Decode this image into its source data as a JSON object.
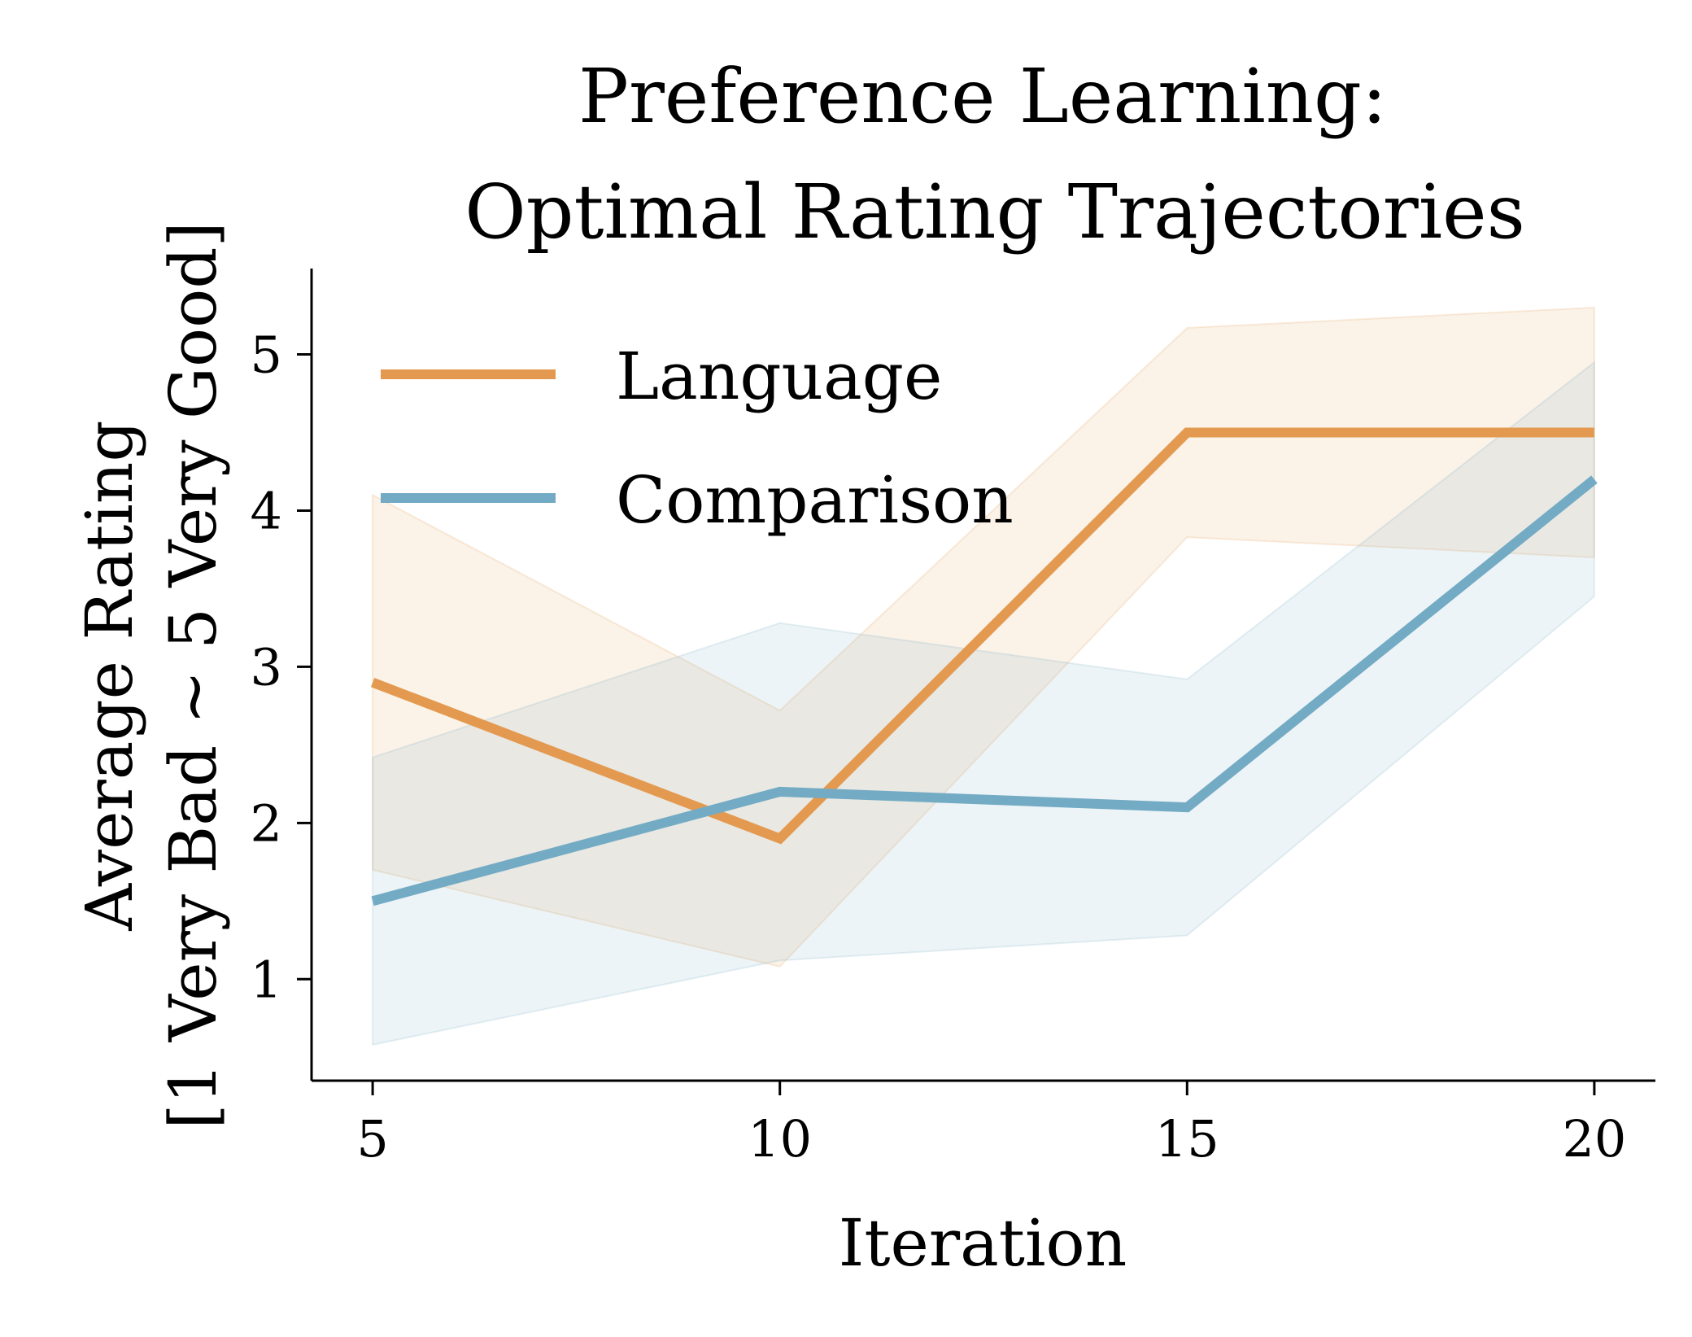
{
  "chart_data": {
    "type": "line",
    "title": [
      "Preference Learning:",
      "Optimal Rating Trajectories"
    ],
    "xlabel": "Iteration",
    "ylabel": [
      "Average Rating",
      "[1 Very Bad ~ 5 Very Good]"
    ],
    "x": [
      5,
      10,
      15,
      20
    ],
    "xticks": [
      "5",
      "10",
      "15",
      "20"
    ],
    "yticks": [
      "1",
      "2",
      "3",
      "4",
      "5"
    ],
    "xlim": [
      4.25,
      20.75
    ],
    "ylim": [
      0.35,
      5.55
    ],
    "grid": false,
    "legend_position": "top-left",
    "series": [
      {
        "name": "Language",
        "color": "#E39A50",
        "values": [
          2.9,
          1.9,
          4.5,
          4.5
        ],
        "lower": [
          1.7,
          1.08,
          3.83,
          3.7
        ],
        "upper": [
          4.1,
          2.72,
          5.17,
          5.3
        ]
      },
      {
        "name": "Comparison",
        "color": "#74ABC4",
        "values": [
          1.5,
          2.2,
          2.1,
          4.2
        ],
        "lower": [
          0.58,
          1.12,
          1.28,
          3.45
        ],
        "upper": [
          2.42,
          3.28,
          2.92,
          4.95
        ]
      }
    ]
  }
}
